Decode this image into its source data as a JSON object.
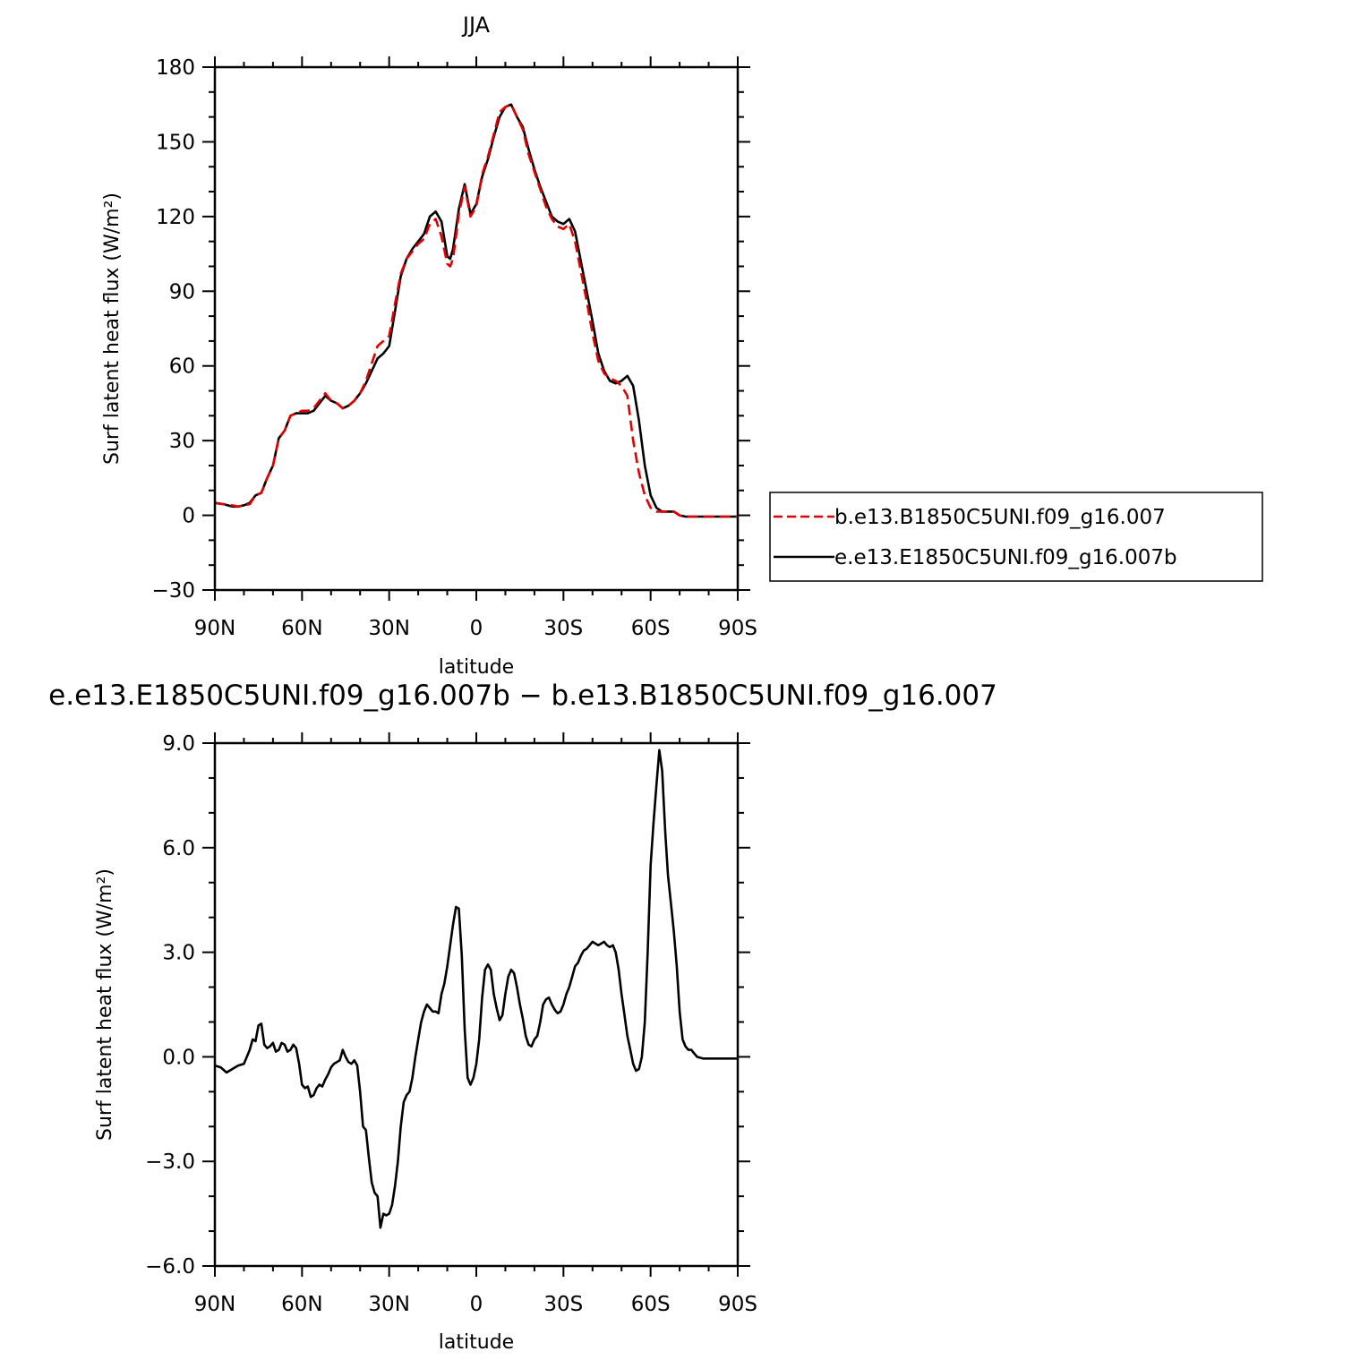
{
  "chart_data": [
    {
      "type": "line",
      "title": "JJA",
      "xlabel": "latitude",
      "ylabel": "Surf latent heat flux (W/m²)",
      "xlim": [
        90,
        -90
      ],
      "ylim": [
        -30,
        180
      ],
      "x_tick_values": [
        90,
        60,
        30,
        0,
        -30,
        -60,
        -90
      ],
      "x_tick_labels": [
        "90N",
        "60N",
        "30N",
        "0",
        "30S",
        "60S",
        "90S"
      ],
      "y_tick_values": [
        -30,
        0,
        30,
        60,
        90,
        120,
        150,
        180
      ],
      "y_tick_labels": [
        "−30",
        "0",
        "30",
        "60",
        "90",
        "120",
        "150",
        "180"
      ],
      "legend_position": "right-middle",
      "series": [
        {
          "name": "b.e13.B1850C5UNI.f09_g16.007",
          "color": "#e00000",
          "dash": "dashed",
          "x": [
            90,
            87,
            84,
            82,
            80,
            78,
            76,
            74,
            72,
            70,
            68,
            66,
            64,
            62,
            60,
            58,
            56,
            54,
            52,
            50,
            48,
            46,
            44,
            42,
            40,
            38,
            36,
            34,
            32,
            30,
            28,
            26,
            24,
            22,
            20,
            18,
            16,
            14,
            12,
            10,
            9,
            8,
            6,
            4,
            2,
            0,
            -2,
            -4,
            -6,
            -8,
            -10,
            -12,
            -14,
            -16,
            -18,
            -20,
            -22,
            -24,
            -26,
            -28,
            -30,
            -32,
            -34,
            -36,
            -38,
            -40,
            -42,
            -44,
            -46,
            -48,
            -50,
            -52,
            -54,
            -56,
            -58,
            -60,
            -62,
            -64,
            -66,
            -68,
            -70,
            -72,
            -74,
            -76,
            -78,
            -79,
            -80,
            -84,
            -87,
            -90
          ],
          "y": [
            5,
            4.5,
            4,
            3.5,
            4,
            4.5,
            8,
            9,
            15,
            20,
            31,
            34,
            40,
            41,
            42,
            42,
            43,
            46,
            49,
            46,
            45,
            43,
            44,
            46,
            49,
            54,
            61,
            68,
            70,
            72,
            85,
            97,
            103,
            106,
            109,
            111,
            117,
            119,
            112,
            101,
            100,
            103,
            121,
            132,
            120,
            124,
            137,
            144,
            153,
            162,
            164,
            165,
            160,
            155,
            145,
            138,
            131,
            124,
            119,
            116,
            115,
            117,
            110,
            98,
            86,
            73,
            62,
            57,
            55,
            54,
            52,
            48,
            30,
            17,
            8,
            3,
            1.5,
            1.5,
            1.5,
            1.5,
            0,
            -0.5,
            -0.5,
            -0.5,
            -0.5,
            -0.5,
            -0.5,
            -0.5,
            -0.5,
            -0.5
          ]
        },
        {
          "name": "e.e13.E1850C5UNI.f09_g16.007b",
          "color": "#000000",
          "dash": "solid",
          "x": [
            90,
            87,
            84,
            82,
            80,
            78,
            76,
            74,
            72,
            70,
            68,
            66,
            64,
            62,
            60,
            58,
            56,
            54,
            52,
            50,
            48,
            46,
            44,
            42,
            40,
            38,
            36,
            34,
            32,
            30,
            28,
            26,
            24,
            22,
            20,
            18,
            16,
            14,
            12,
            10,
            9,
            8,
            6,
            4,
            2,
            0,
            -2,
            -4,
            -6,
            -8,
            -10,
            -12,
            -14,
            -16,
            -18,
            -20,
            -22,
            -24,
            -26,
            -28,
            -30,
            -32,
            -34,
            -36,
            -38,
            -40,
            -42,
            -44,
            -46,
            -48,
            -50,
            -52,
            -54,
            -56,
            -58,
            -60,
            -62,
            -64,
            -66,
            -68,
            -70,
            -72,
            -74,
            -76,
            -78,
            -79,
            -80,
            -84,
            -87,
            -90
          ],
          "y": [
            5,
            4.5,
            3.5,
            3.5,
            4,
            5,
            8,
            9,
            15,
            20,
            31,
            34,
            40,
            41,
            41,
            41,
            42,
            45,
            48,
            46,
            45,
            43,
            44,
            46,
            49,
            53,
            58,
            63,
            65,
            68,
            82,
            96,
            103,
            107,
            110,
            113,
            120,
            122,
            118,
            104,
            103,
            107,
            123,
            133,
            121,
            125,
            136,
            143,
            152,
            160,
            164,
            165,
            160,
            156,
            147,
            139,
            132,
            126,
            120,
            118,
            117,
            119,
            114,
            102,
            90,
            78,
            65,
            58,
            54,
            53,
            54,
            56,
            52,
            38,
            20,
            8,
            3,
            1.5,
            1.5,
            1.5,
            0,
            -0.5,
            -0.5,
            -0.5,
            -0.5,
            -0.5,
            -0.5,
            -0.5,
            -0.5,
            -0.5
          ]
        }
      ]
    },
    {
      "type": "line",
      "title": "e.e13.E1850C5UNI.f09_g16.007b − b.e13.B1850C5UNI.f09_g16.007",
      "xlabel": "latitude",
      "ylabel": "Surf latent heat flux (W/m²)",
      "xlim": [
        90,
        -90
      ],
      "ylim": [
        -6,
        9
      ],
      "x_tick_values": [
        90,
        60,
        30,
        0,
        -30,
        -60,
        -90
      ],
      "x_tick_labels": [
        "90N",
        "60N",
        "30N",
        "0",
        "30S",
        "60S",
        "90S"
      ],
      "y_tick_values": [
        -6,
        -3,
        0,
        3,
        6,
        9
      ],
      "y_tick_labels": [
        "−6.0",
        "−3.0",
        "0.0",
        "3.0",
        "6.0",
        "9.0"
      ],
      "series": [
        {
          "color": "#000000",
          "dash": "solid",
          "x": [
            90,
            88,
            86,
            84,
            82,
            80,
            79,
            78,
            77,
            76,
            75,
            74,
            73,
            72,
            71,
            70,
            69,
            68,
            67,
            66,
            65,
            64,
            63,
            62,
            61,
            60,
            59,
            58,
            57,
            56,
            55,
            54,
            53,
            52,
            51,
            50,
            49,
            48,
            47,
            46,
            45,
            44,
            43,
            42,
            41,
            40,
            39,
            38,
            37,
            36,
            35,
            34,
            33,
            32,
            31,
            30,
            29,
            28,
            27,
            26,
            25,
            24,
            23,
            22,
            21,
            20,
            19,
            18,
            17,
            16,
            15,
            14,
            13,
            12,
            11,
            10,
            9,
            8,
            7,
            6,
            5,
            4,
            3,
            2,
            1,
            0,
            -1,
            -2,
            -3,
            -4,
            -5,
            -6,
            -7,
            -8,
            -9,
            -10,
            -11,
            -12,
            -13,
            -14,
            -15,
            -16,
            -17,
            -18,
            -19,
            -20,
            -21,
            -22,
            -23,
            -24,
            -25,
            -26,
            -27,
            -28,
            -29,
            -30,
            -31,
            -32,
            -33,
            -34,
            -35,
            -36,
            -37,
            -38,
            -39,
            -40,
            -41,
            -42,
            -43,
            -44,
            -45,
            -46,
            -47,
            -48,
            -49,
            -50,
            -51,
            -52,
            -53,
            -54,
            -55,
            -56,
            -57,
            -58,
            -59,
            -60,
            -61,
            -62,
            -63,
            -64,
            -65,
            -66,
            -67,
            -68,
            -69,
            -70,
            -71,
            -72,
            -73,
            -74,
            -75,
            -76,
            -78,
            -80,
            -82,
            -84,
            -86,
            -88,
            -90
          ],
          "y": [
            -0.25,
            -0.3,
            -0.45,
            -0.35,
            -0.25,
            -0.2,
            0.0,
            0.2,
            0.5,
            0.45,
            0.9,
            0.95,
            0.35,
            0.25,
            0.3,
            0.4,
            0.15,
            0.2,
            0.4,
            0.35,
            0.15,
            0.2,
            0.35,
            0.25,
            -0.2,
            -0.8,
            -0.9,
            -0.85,
            -1.15,
            -1.1,
            -0.9,
            -0.8,
            -0.85,
            -0.65,
            -0.5,
            -0.3,
            -0.2,
            -0.15,
            -0.1,
            0.2,
            0.0,
            -0.15,
            -0.2,
            -0.1,
            -0.25,
            -1.0,
            -2.0,
            -2.1,
            -2.9,
            -3.6,
            -3.9,
            -4.0,
            -4.9,
            -4.5,
            -4.55,
            -4.5,
            -4.25,
            -3.7,
            -3.0,
            -2.0,
            -1.3,
            -1.1,
            -1.0,
            -0.6,
            0.0,
            0.5,
            1.0,
            1.3,
            1.5,
            1.4,
            1.3,
            1.3,
            1.25,
            1.8,
            2.1,
            2.6,
            3.2,
            3.8,
            4.3,
            4.25,
            2.9,
            0.8,
            -0.6,
            -0.8,
            -0.6,
            -0.2,
            0.5,
            1.7,
            2.5,
            2.65,
            2.5,
            1.8,
            1.4,
            1.05,
            1.2,
            1.8,
            2.3,
            2.5,
            2.4,
            2.0,
            1.5,
            1.1,
            0.6,
            0.35,
            0.3,
            0.5,
            0.6,
            1.0,
            1.5,
            1.65,
            1.7,
            1.5,
            1.35,
            1.25,
            1.3,
            1.5,
            1.8,
            2.0,
            2.3,
            2.6,
            2.7,
            2.9,
            3.05,
            3.1,
            3.2,
            3.3,
            3.25,
            3.2,
            3.25,
            3.3,
            3.2,
            3.15,
            3.2,
            3.0,
            2.5,
            1.8,
            1.2,
            0.6,
            0.2,
            -0.2,
            -0.4,
            -0.35,
            0.0,
            1.0,
            3.0,
            5.5,
            6.7,
            7.8,
            8.8,
            8.2,
            6.5,
            5.2,
            4.4,
            3.6,
            2.6,
            1.3,
            0.5,
            0.3,
            0.2,
            0.2,
            0.1,
            0.0,
            -0.05,
            -0.05,
            -0.05,
            -0.05,
            -0.05,
            -0.05,
            -0.05
          ]
        }
      ]
    }
  ],
  "legend": {
    "entries": [
      "b.e13.B1850C5UNI.f09_g16.007",
      "e.e13.E1850C5UNI.f09_g16.007b"
    ]
  }
}
